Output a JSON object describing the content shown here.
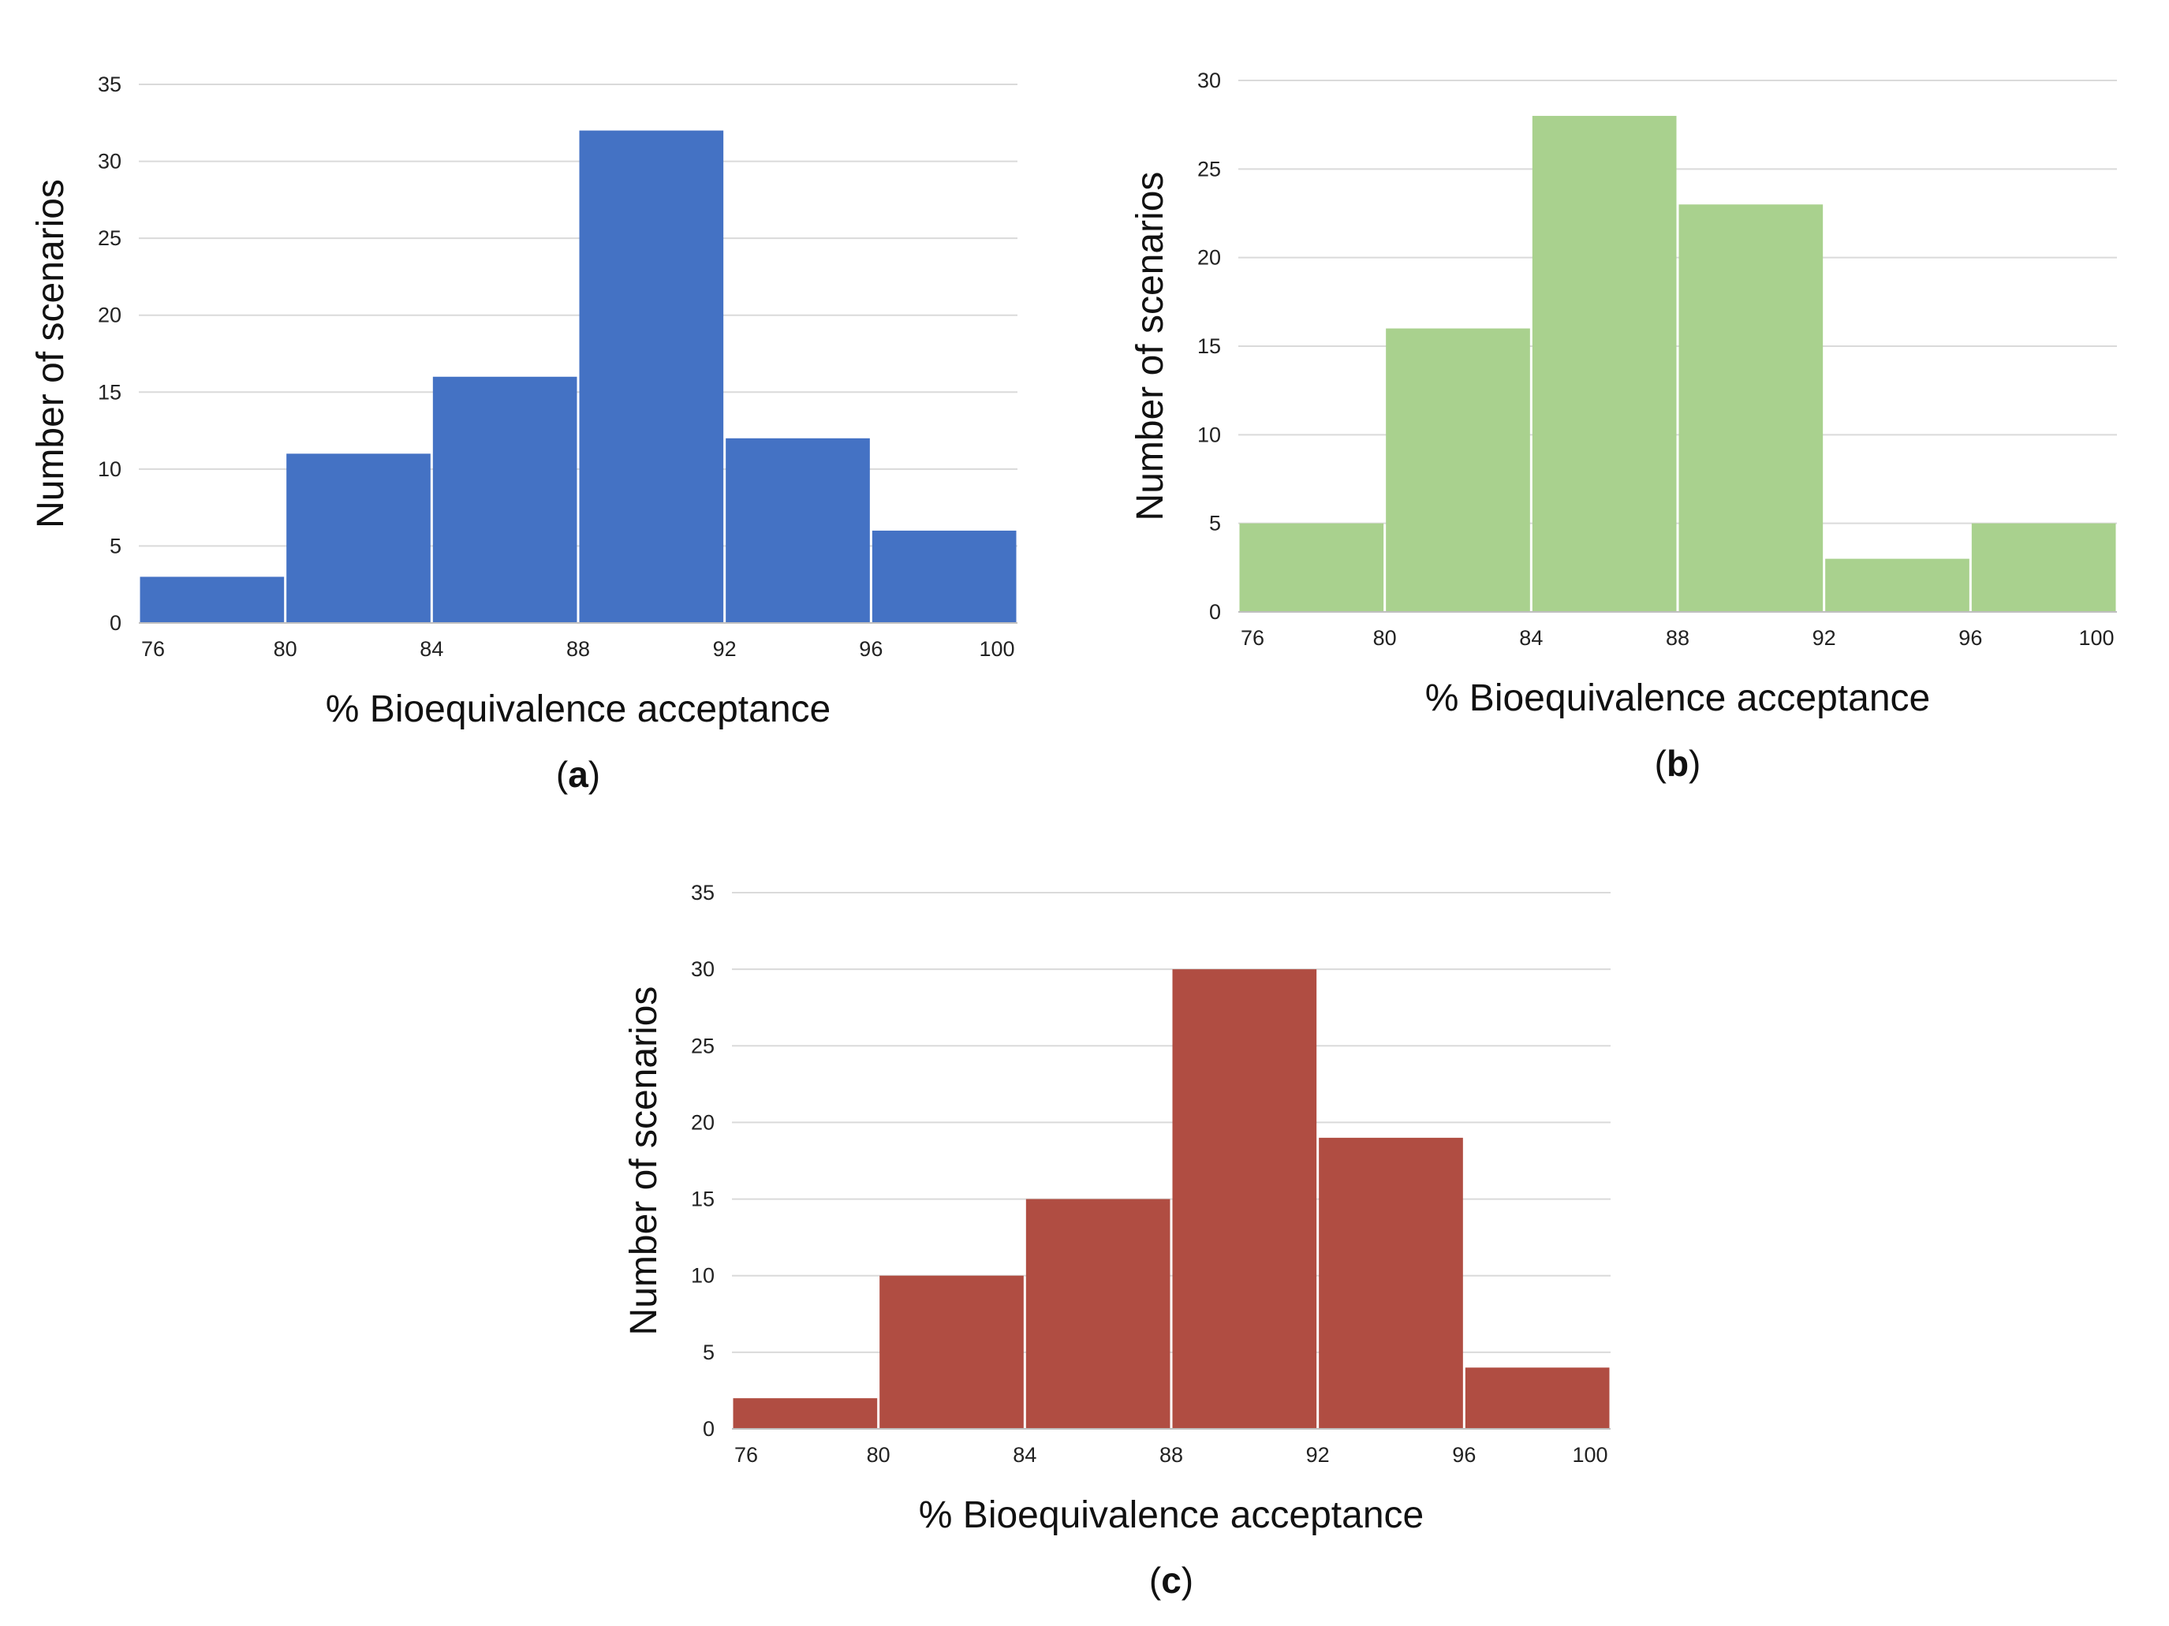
{
  "chart_data": [
    {
      "type": "bar",
      "panel_label": "a",
      "categories": [
        "76-80",
        "80-84",
        "84-88",
        "88-92",
        "92-96",
        "96-100"
      ],
      "bin_edges": [
        76,
        80,
        84,
        88,
        92,
        96,
        100
      ],
      "x_ticks": [
        "76",
        "80",
        "84",
        "88",
        "92",
        "96",
        "100"
      ],
      "values": [
        3,
        11,
        16,
        32,
        12,
        6
      ],
      "ylim": [
        0,
        35
      ],
      "y_ticks": [
        "0",
        "5",
        "10",
        "15",
        "20",
        "25",
        "30",
        "35"
      ],
      "xlabel": "% Bioequivalence acceptance",
      "ylabel": "Number of scenarios",
      "grid": true,
      "color": "#4472C4"
    },
    {
      "type": "bar",
      "panel_label": "b",
      "categories": [
        "76-80",
        "80-84",
        "84-88",
        "88-92",
        "92-96",
        "96-100"
      ],
      "bin_edges": [
        76,
        80,
        84,
        88,
        92,
        96,
        100
      ],
      "x_ticks": [
        "76",
        "80",
        "84",
        "88",
        "92",
        "96",
        "100"
      ],
      "values": [
        5,
        16,
        28,
        23,
        3,
        5
      ],
      "ylim": [
        0,
        30
      ],
      "y_ticks": [
        "0",
        "5",
        "10",
        "15",
        "20",
        "25",
        "30"
      ],
      "xlabel": "% Bioequivalence acceptance",
      "ylabel": "Number of scenarios",
      "grid": true,
      "color": "#A9D18E"
    },
    {
      "type": "bar",
      "panel_label": "c",
      "categories": [
        "76-80",
        "80-84",
        "84-88",
        "88-92",
        "92-96",
        "96-100"
      ],
      "bin_edges": [
        76,
        80,
        84,
        88,
        92,
        96,
        100
      ],
      "x_ticks": [
        "76",
        "80",
        "84",
        "88",
        "92",
        "96",
        "100"
      ],
      "values": [
        2,
        10,
        15,
        30,
        19,
        4
      ],
      "ylim": [
        0,
        35
      ],
      "y_ticks": [
        "0",
        "5",
        "10",
        "15",
        "20",
        "25",
        "30",
        "35"
      ],
      "xlabel": "% Bioequivalence acceptance",
      "ylabel": "Number of scenarios",
      "grid": true,
      "color": "#B04D42"
    }
  ]
}
